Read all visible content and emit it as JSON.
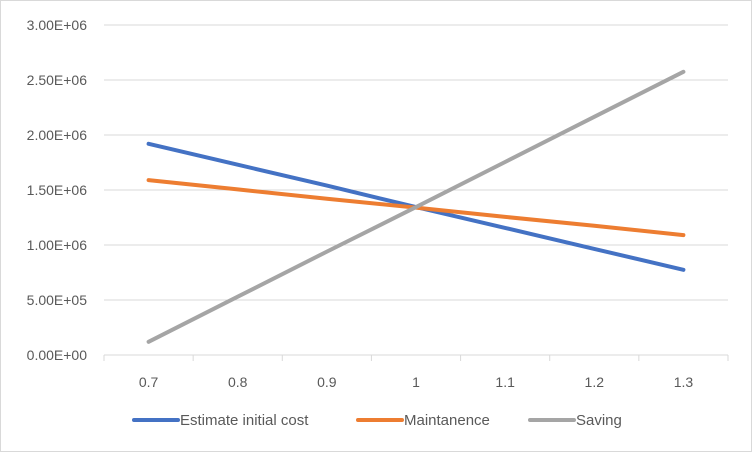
{
  "chart_data": {
    "type": "line",
    "title": "",
    "xlabel": "",
    "ylabel": "",
    "x": [
      0.7,
      0.8,
      0.9,
      1,
      1.1,
      1.2,
      1.3
    ],
    "x_tick_labels": [
      "0.7",
      "0.8",
      "0.9",
      "1",
      "1.1",
      "1.2",
      "1.3"
    ],
    "ylim": [
      0,
      3000000
    ],
    "y_ticks": [
      0,
      500000,
      1000000,
      1500000,
      2000000,
      2500000,
      3000000
    ],
    "y_tick_labels": [
      "0.00E+00",
      "5.00E+05",
      "1.00E+06",
      "1.50E+06",
      "2.00E+06",
      "2.50E+06",
      "3.00E+06"
    ],
    "grid": "horizontal",
    "legend_position": "bottom",
    "series": [
      {
        "name": "Estimate initial cost",
        "color": "#4472c4",
        "values": [
          1920000,
          1730000,
          1540000,
          1345000,
          1155000,
          965000,
          775000
        ]
      },
      {
        "name": "Maintanence",
        "color": "#ed7d31",
        "values": [
          1590000,
          1505000,
          1420000,
          1340000,
          1255000,
          1175000,
          1090000
        ]
      },
      {
        "name": "Saving",
        "color": "#a5a5a5",
        "values": [
          120000,
          530000,
          940000,
          1345000,
          1755000,
          2165000,
          2575000
        ]
      }
    ]
  }
}
